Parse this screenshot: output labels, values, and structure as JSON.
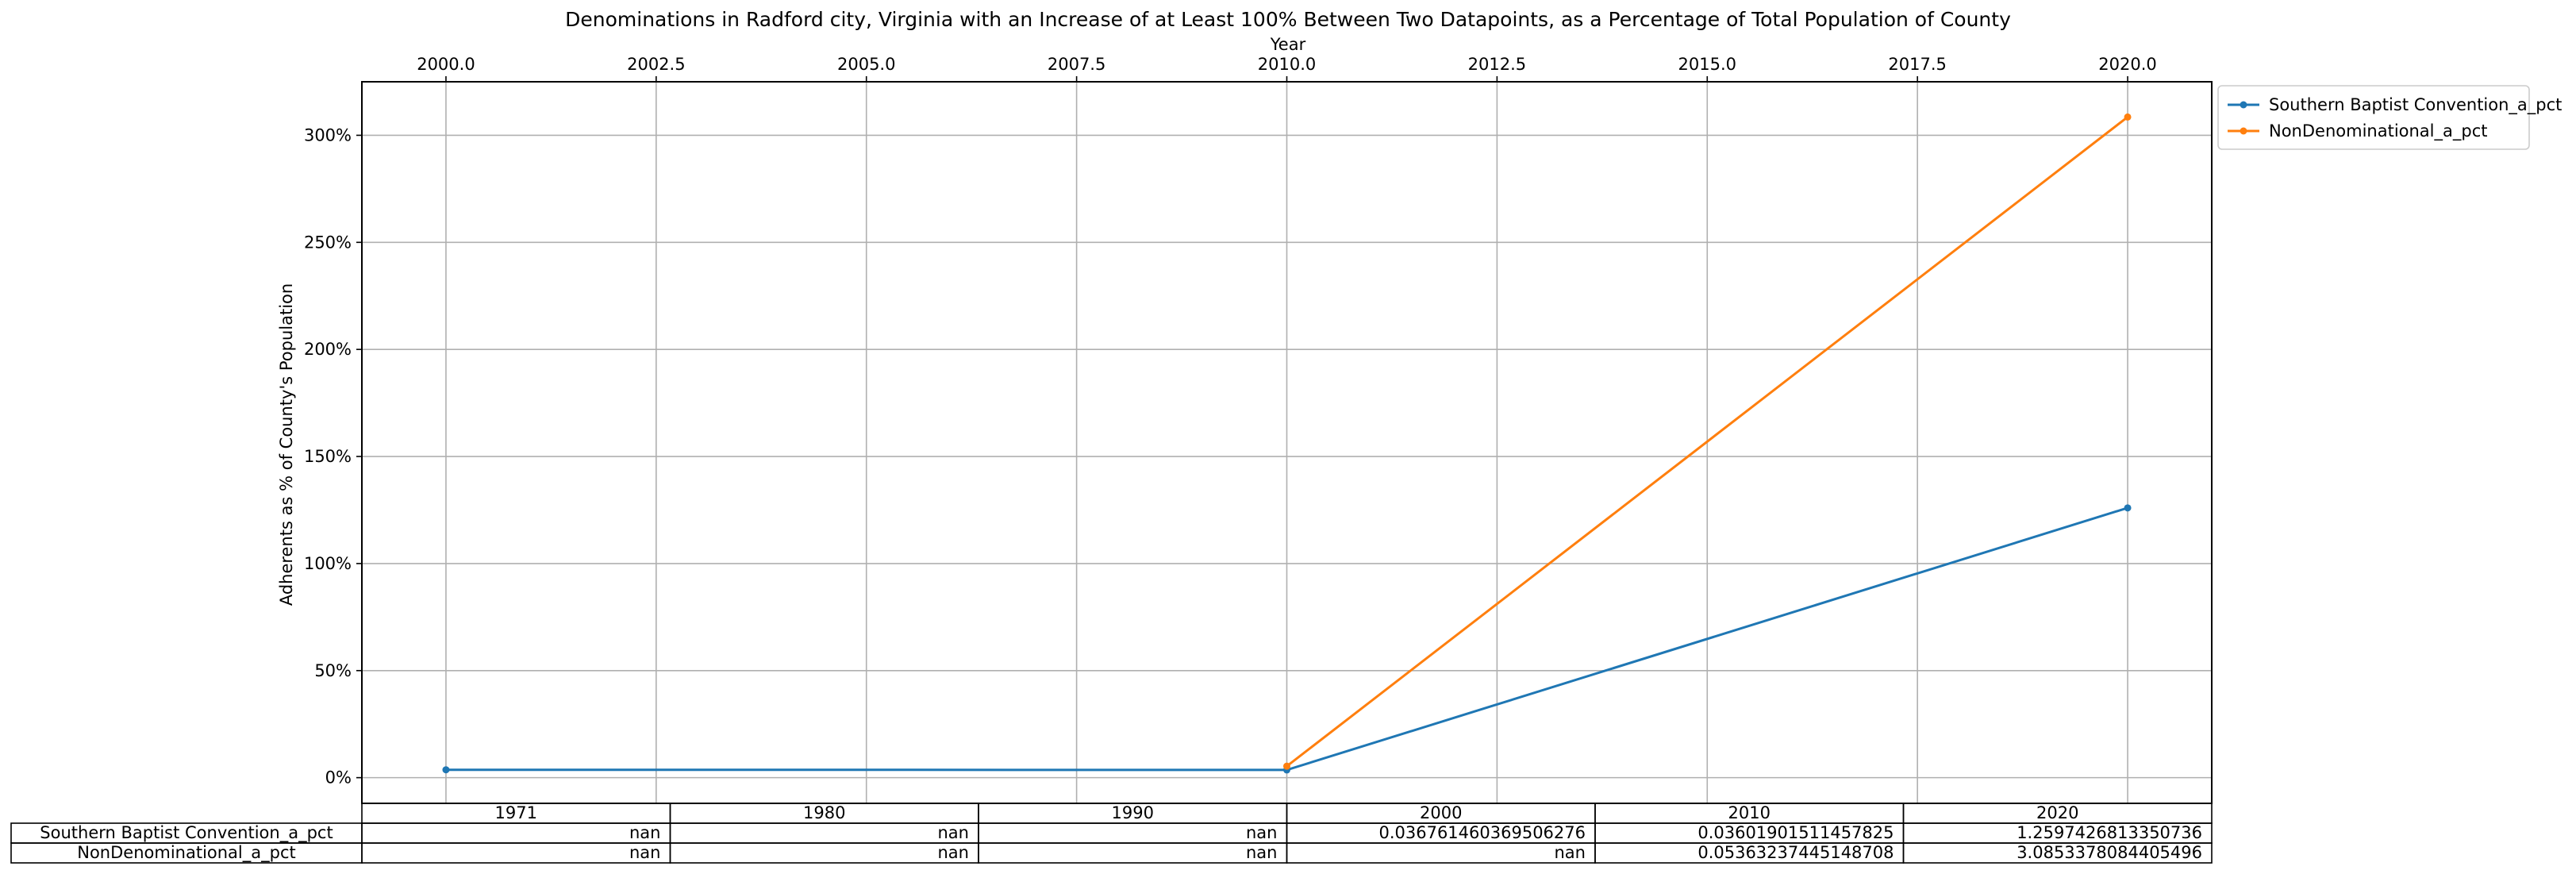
{
  "chart_data": {
    "type": "line",
    "title": "Denominations in Radford city, Virginia with an Increase of at Least 100% Between Two Datapoints, as a Percentage of Total Population of County",
    "xlabel": "Year",
    "ylabel": "Adherents as % of County's Population",
    "x_ticks": [
      "2000.0",
      "2002.5",
      "2005.0",
      "2007.5",
      "2010.0",
      "2012.5",
      "2015.0",
      "2017.5",
      "2020.0"
    ],
    "y_ticks": [
      "0%",
      "50%",
      "100%",
      "150%",
      "200%",
      "250%",
      "300%"
    ],
    "xlim": [
      1999.0,
      2021.0
    ],
    "ylim": [
      -0.12,
      3.25
    ],
    "grid": true,
    "legend_position": "outside upper right",
    "series": [
      {
        "name": "Southern Baptist Convention_a_pct",
        "color": "#1f77b4",
        "x": [
          2000,
          2010,
          2020
        ],
        "y": [
          0.036761460369506276,
          0.03601901511457825,
          1.2597426813350736
        ]
      },
      {
        "name": "NonDenominational_a_pct",
        "color": "#ff7f0e",
        "x": [
          2010,
          2020
        ],
        "y": [
          0.05363237445148708,
          3.0853378084405496
        ]
      }
    ],
    "table": {
      "columns": [
        "1971",
        "1980",
        "1990",
        "2000",
        "2010",
        "2020"
      ],
      "rows": [
        {
          "label": "Southern Baptist Convention_a_pct",
          "cells": [
            "nan",
            "nan",
            "nan",
            "0.036761460369506276",
            "0.03601901511457825",
            "1.2597426813350736"
          ]
        },
        {
          "label": "NonDenominational_a_pct",
          "cells": [
            "nan",
            "nan",
            "nan",
            "nan",
            "0.05363237445148708",
            "3.0853378084405496"
          ]
        }
      ]
    }
  }
}
